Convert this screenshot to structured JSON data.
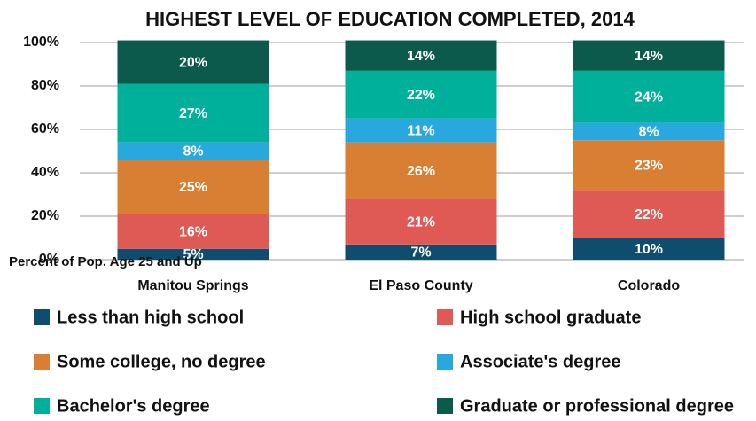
{
  "chart_data": {
    "type": "stacked_bar",
    "title": "HIGHEST LEVEL OF EDUCATION COMPLETED, 2014",
    "y_label": "Percent of Pop. Age 25 and Up",
    "categories": [
      "Manitou Springs",
      "El Paso County",
      "Colorado"
    ],
    "series": [
      {
        "name": "Less than high school",
        "color": "#0e4d6e",
        "values": [
          5,
          7,
          10
        ],
        "value_labels": [
          "5%",
          "7%",
          "10%"
        ]
      },
      {
        "name": "High school graduate",
        "color": "#e05a55",
        "values": [
          16,
          21,
          22
        ],
        "value_labels": [
          "16%",
          "21%",
          "22%"
        ]
      },
      {
        "name": "Some college, no degree",
        "color": "#d97f33",
        "values": [
          25,
          26,
          23
        ],
        "value_labels": [
          "25%",
          "26%",
          "23%"
        ]
      },
      {
        "name": "Associate's degree",
        "color": "#29a8e0",
        "values": [
          8,
          11,
          8
        ],
        "value_labels": [
          "8%",
          "11%",
          "8%"
        ]
      },
      {
        "name": "Bachelor's degree",
        "color": "#00b09b",
        "values": [
          27,
          22,
          24
        ],
        "value_labels": [
          "27%",
          "22%",
          "24%"
        ]
      },
      {
        "name": "Graduate or professional degree",
        "color": "#0b5a4c",
        "values": [
          20,
          14,
          14
        ],
        "value_labels": [
          "20%",
          "14%",
          "14%"
        ]
      }
    ],
    "ylim": [
      0,
      100
    ],
    "yticks": [
      {
        "value": 0,
        "label": "0%"
      },
      {
        "value": 20,
        "label": "20%"
      },
      {
        "value": 40,
        "label": "40%"
      },
      {
        "value": 60,
        "label": "60%"
      },
      {
        "value": 80,
        "label": "80%"
      },
      {
        "value": 100,
        "label": "100%"
      }
    ],
    "grid": true,
    "legend": "bottom"
  }
}
